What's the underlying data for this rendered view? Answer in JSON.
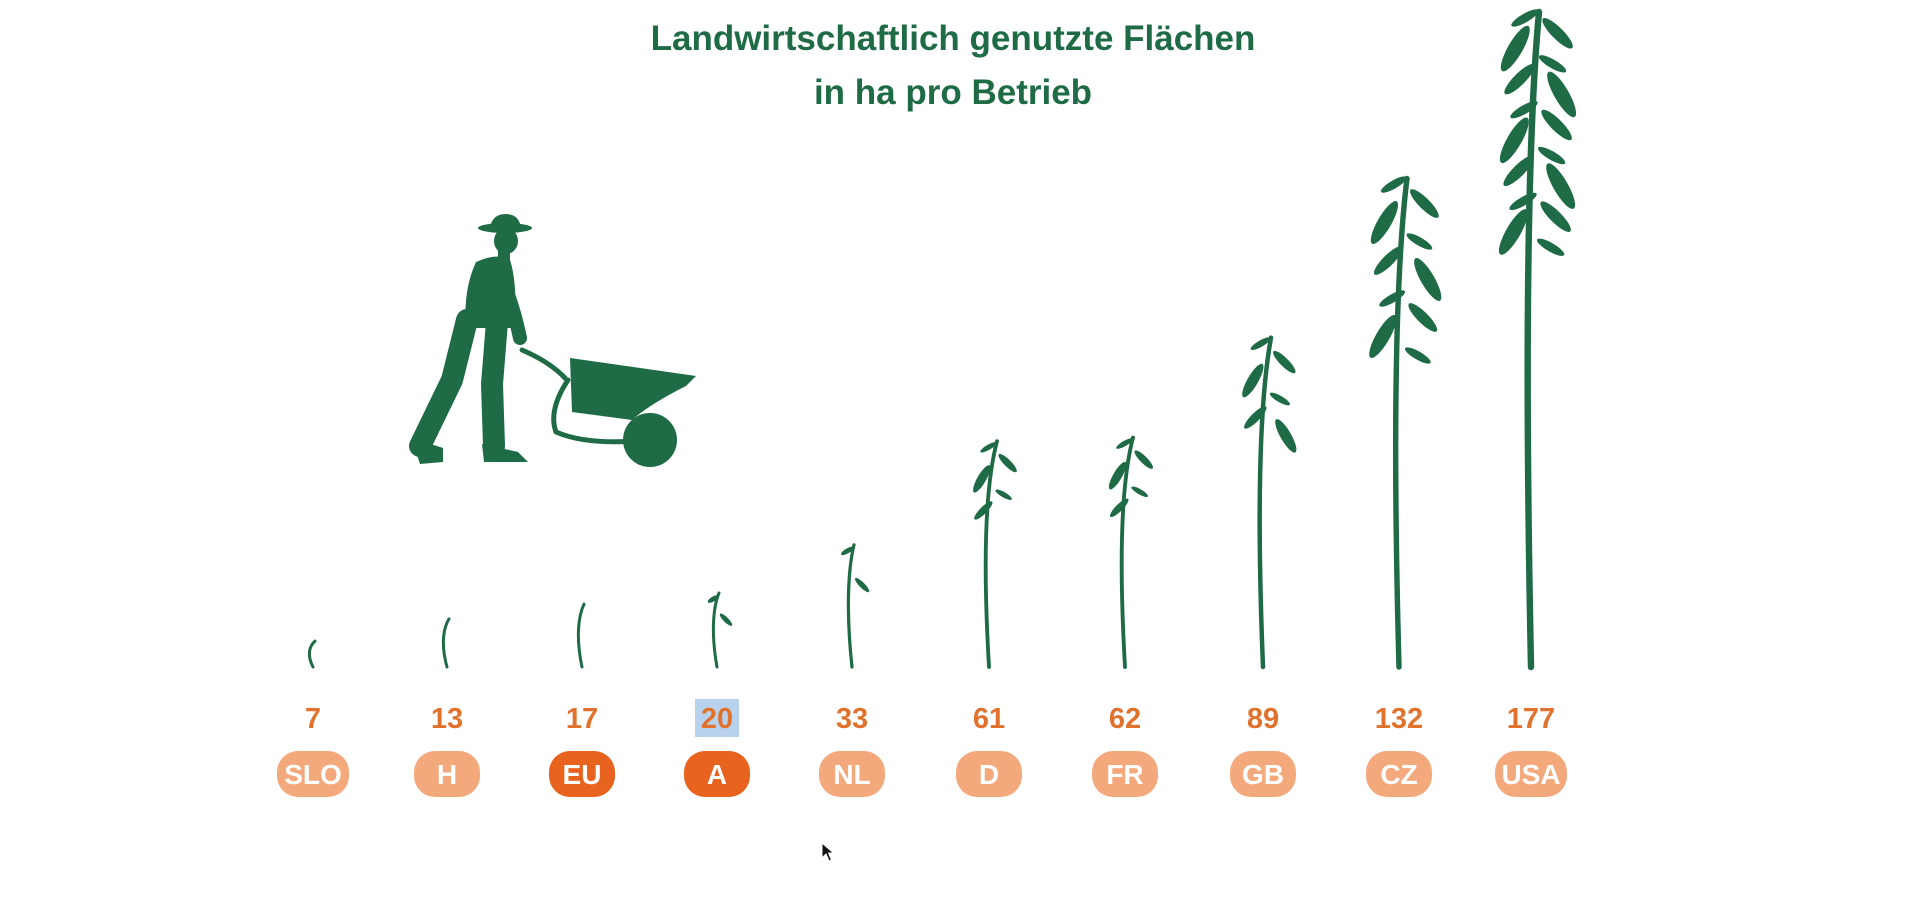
{
  "chart_data": {
    "type": "bar",
    "title": "Landwirtschaftlich genutzte Flächen",
    "subtitle": "in ha pro Betrieb",
    "categories": [
      "SLO",
      "H",
      "EU",
      "A",
      "NL",
      "D",
      "FR",
      "GB",
      "CZ",
      "USA"
    ],
    "values": [
      7,
      13,
      17,
      20,
      33,
      61,
      62,
      89,
      132,
      177
    ],
    "highlighted": [
      "EU",
      "A"
    ],
    "text_selected": "A",
    "colors": {
      "title": "#1e6b45",
      "plant": "#1e6b45",
      "value_text": "#e0722d",
      "badge": "#f4a97c",
      "badge_highlight": "#e8631d",
      "selection": "#b8d2ee"
    },
    "mark_style": "plant-stem",
    "illustration": "farmer-with-wheelbarrow-silhouette"
  }
}
